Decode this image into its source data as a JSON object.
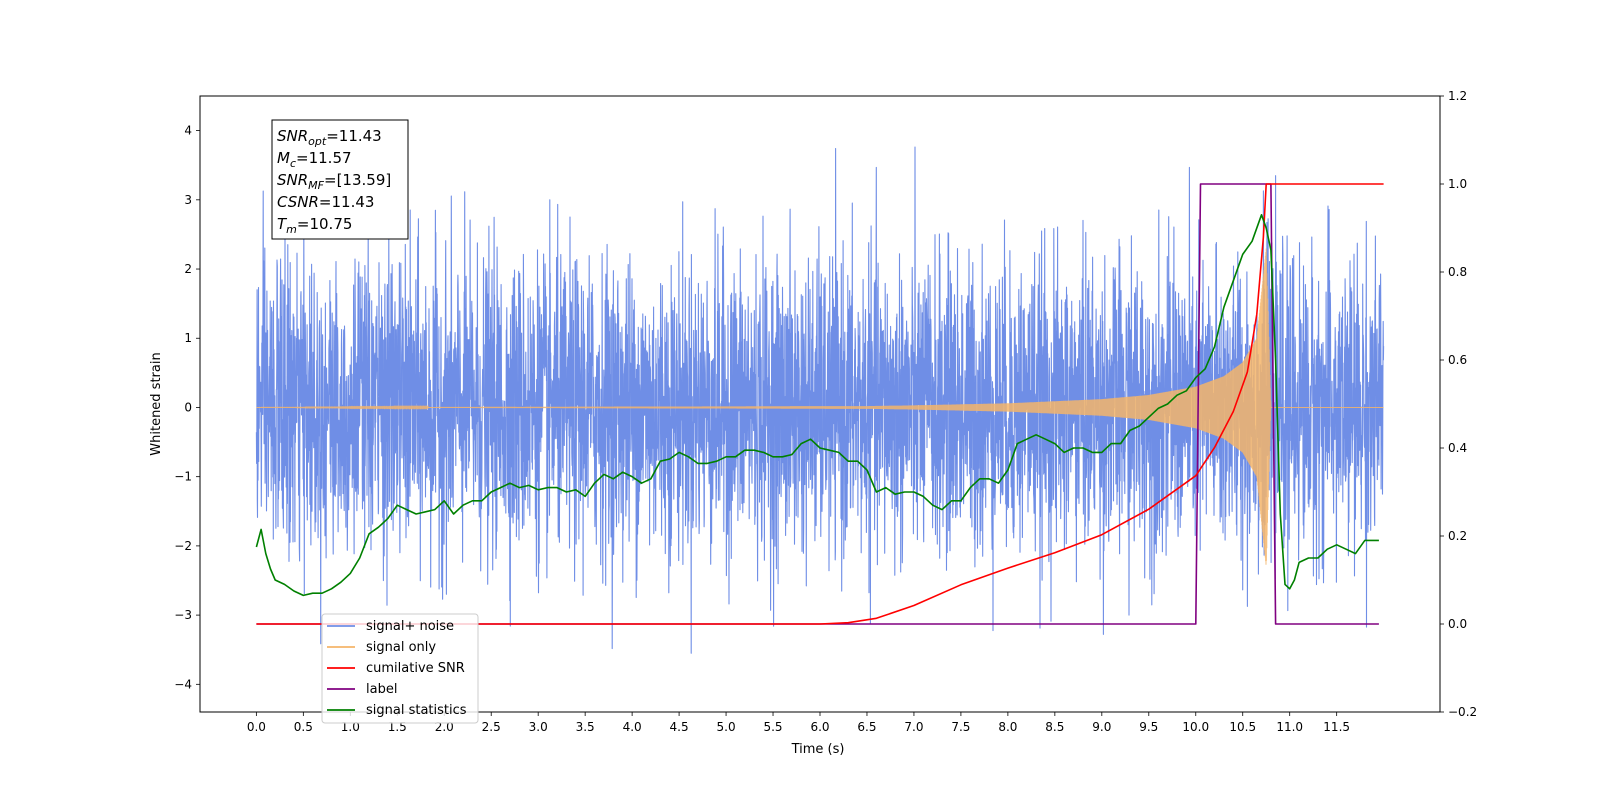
{
  "chart_data": {
    "type": "line",
    "xlabel": "Time (s)",
    "ylabel_left": "Whitened strain",
    "xlim": [
      -0.6,
      12.6
    ],
    "ylim_left": [
      -4.4,
      4.5
    ],
    "ylim_right": [
      -0.2,
      1.2
    ],
    "x_ticks": [
      0.0,
      0.5,
      1.0,
      1.5,
      2.0,
      2.5,
      3.0,
      3.5,
      4.0,
      4.5,
      5.0,
      5.5,
      6.0,
      6.5,
      7.0,
      7.5,
      8.0,
      8.5,
      9.0,
      9.5,
      10.0,
      10.5,
      11.0,
      11.5
    ],
    "x_tick_labels": [
      "0.0",
      "0.5",
      "1.0",
      "1.5",
      "2.0",
      "2.5",
      "3.0",
      "3.5",
      "4.0",
      "4.5",
      "5.0",
      "5.5",
      "6.0",
      "6.5",
      "7.0",
      "7.5",
      "8.0",
      "8.5",
      "9.0",
      "9.5",
      "10.0",
      "10.5",
      "11.0",
      "11.5"
    ],
    "y_left_ticks": [
      -4,
      -3,
      -2,
      -1,
      0,
      1,
      2,
      3,
      4
    ],
    "y_left_tick_labels": [
      "−4",
      "−3",
      "−2",
      "−1",
      "0",
      "1",
      "2",
      "3",
      "4"
    ],
    "y_right_ticks": [
      -0.2,
      0.0,
      0.2,
      0.4,
      0.6,
      0.8,
      1.0,
      1.2
    ],
    "y_right_tick_labels": [
      "−0.2",
      "0.0",
      "0.2",
      "0.4",
      "0.6",
      "0.8",
      "1.0",
      "1.2"
    ],
    "grid": false,
    "legend_position": "lower-left",
    "annotation": {
      "lines": [
        {
          "sym": "SNR",
          "sub": "opt",
          "val": "=11.43"
        },
        {
          "sym": "M",
          "sub": "c",
          "val": "=11.57"
        },
        {
          "sym": "SNR",
          "sub": "MF",
          "val": "=[13.59]"
        },
        {
          "sym": "CSNR",
          "sub": "",
          "val": "=11.43"
        },
        {
          "sym": "T",
          "sub": "m",
          "val": "=10.75"
        }
      ]
    },
    "series": [
      {
        "name": "signal+ noise",
        "axis": "left",
        "color": "#6f8ee6",
        "description": "whitened noise, roughly Gaussian with sigma ~1, spanning about -3.9 to 4.1",
        "envelope_typical": [
          -2.6,
          2.8
        ],
        "x_range": [
          0.0,
          12.0
        ]
      },
      {
        "name": "signal only",
        "axis": "left",
        "color": "#f5b56a",
        "description": "chirp signal, flat near 0 until ~6.5 s, amplitude growing toward ~10.75 s then ending",
        "envelope": {
          "x": [
            0.0,
            6.5,
            7.0,
            8.0,
            9.0,
            9.5,
            10.0,
            10.3,
            10.5,
            10.65,
            10.75,
            10.8,
            12.0
          ],
          "amp": [
            0.0,
            0.02,
            0.03,
            0.06,
            0.12,
            0.18,
            0.3,
            0.45,
            0.65,
            1.0,
            2.3,
            0.0,
            0.0
          ]
        }
      },
      {
        "name": "cumilative SNR",
        "axis": "right",
        "color": "#ff0000",
        "x": [
          0.0,
          6.0,
          6.3,
          6.6,
          7.0,
          7.5,
          8.0,
          8.5,
          9.0,
          9.5,
          10.0,
          10.2,
          10.4,
          10.55,
          10.65,
          10.72,
          10.75,
          12.0
        ],
        "y": [
          0.0,
          0.0,
          0.003,
          0.013,
          0.042,
          0.089,
          0.127,
          0.162,
          0.203,
          0.261,
          0.337,
          0.401,
          0.483,
          0.573,
          0.704,
          0.88,
          1.0,
          1.0
        ]
      },
      {
        "name": "label",
        "axis": "right",
        "color": "#800080",
        "x": [
          0.0,
          10.0,
          10.05,
          10.8,
          10.85,
          11.95
        ],
        "y": [
          0.0,
          0.0,
          1.0,
          1.0,
          0.0,
          0.0
        ]
      },
      {
        "name": "signal statistics",
        "axis": "right",
        "color": "#008000",
        "x": [
          0.0,
          0.05,
          0.1,
          0.15,
          0.2,
          0.3,
          0.4,
          0.5,
          0.6,
          0.7,
          0.8,
          0.9,
          1.0,
          1.1,
          1.2,
          1.3,
          1.4,
          1.5,
          1.6,
          1.7,
          1.8,
          1.9,
          2.0,
          2.1,
          2.2,
          2.3,
          2.4,
          2.5,
          2.6,
          2.7,
          2.8,
          2.9,
          3.0,
          3.1,
          3.2,
          3.3,
          3.4,
          3.5,
          3.6,
          3.7,
          3.8,
          3.9,
          4.0,
          4.1,
          4.2,
          4.3,
          4.4,
          4.5,
          4.6,
          4.7,
          4.8,
          4.9,
          5.0,
          5.1,
          5.2,
          5.3,
          5.4,
          5.5,
          5.6,
          5.7,
          5.8,
          5.9,
          6.0,
          6.1,
          6.2,
          6.3,
          6.4,
          6.5,
          6.6,
          6.7,
          6.8,
          6.9,
          7.0,
          7.1,
          7.2,
          7.3,
          7.4,
          7.5,
          7.6,
          7.7,
          7.8,
          7.9,
          8.0,
          8.1,
          8.2,
          8.3,
          8.4,
          8.5,
          8.6,
          8.7,
          8.8,
          8.9,
          9.0,
          9.1,
          9.2,
          9.3,
          9.4,
          9.5,
          9.6,
          9.7,
          9.8,
          9.9,
          10.0,
          10.1,
          10.2,
          10.3,
          10.4,
          10.5,
          10.6,
          10.7,
          10.75,
          10.8,
          10.85,
          10.9,
          10.95,
          11.0,
          11.05,
          11.1,
          11.2,
          11.3,
          11.4,
          11.5,
          11.6,
          11.7,
          11.8,
          11.9,
          11.95
        ],
        "y": [
          0.175,
          0.215,
          0.16,
          0.125,
          0.1,
          0.09,
          0.075,
          0.065,
          0.07,
          0.07,
          0.08,
          0.095,
          0.115,
          0.15,
          0.205,
          0.22,
          0.24,
          0.27,
          0.26,
          0.25,
          0.255,
          0.26,
          0.28,
          0.25,
          0.27,
          0.28,
          0.28,
          0.3,
          0.31,
          0.32,
          0.31,
          0.315,
          0.305,
          0.31,
          0.31,
          0.3,
          0.305,
          0.29,
          0.32,
          0.34,
          0.33,
          0.345,
          0.335,
          0.32,
          0.33,
          0.37,
          0.375,
          0.39,
          0.38,
          0.365,
          0.365,
          0.37,
          0.38,
          0.38,
          0.395,
          0.395,
          0.39,
          0.38,
          0.38,
          0.385,
          0.41,
          0.42,
          0.4,
          0.395,
          0.39,
          0.37,
          0.37,
          0.35,
          0.3,
          0.31,
          0.295,
          0.3,
          0.3,
          0.29,
          0.27,
          0.26,
          0.28,
          0.28,
          0.31,
          0.33,
          0.33,
          0.32,
          0.35,
          0.41,
          0.42,
          0.43,
          0.42,
          0.41,
          0.39,
          0.4,
          0.4,
          0.39,
          0.39,
          0.41,
          0.41,
          0.44,
          0.45,
          0.47,
          0.49,
          0.5,
          0.52,
          0.53,
          0.56,
          0.58,
          0.63,
          0.72,
          0.78,
          0.84,
          0.87,
          0.93,
          0.9,
          0.85,
          0.6,
          0.25,
          0.09,
          0.08,
          0.1,
          0.14,
          0.15,
          0.15,
          0.17,
          0.18,
          0.17,
          0.16,
          0.19,
          0.19,
          0.19
        ]
      }
    ]
  }
}
